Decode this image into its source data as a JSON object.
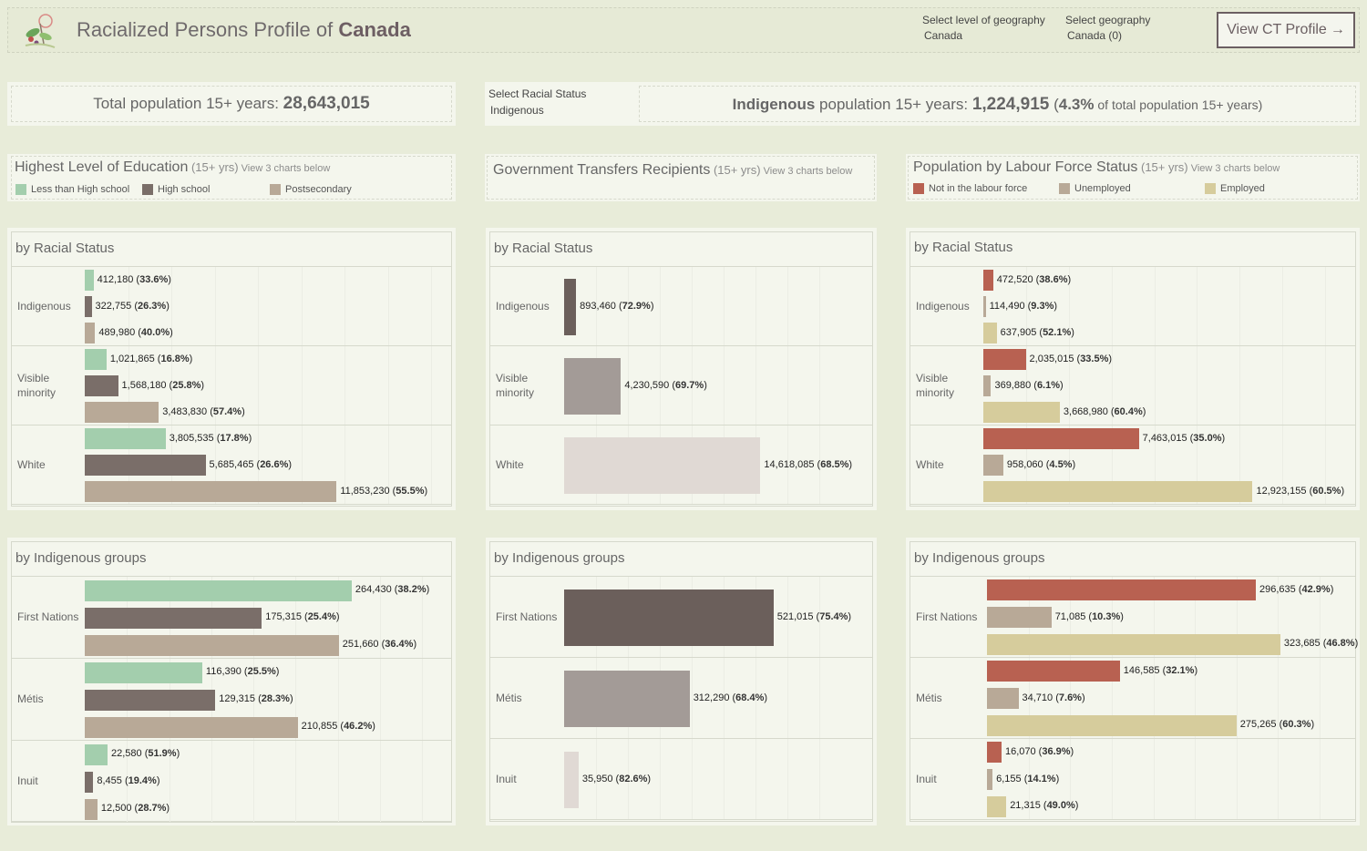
{
  "header": {
    "title_prefix": "Racialized Persons Profile of ",
    "title_geo": "Canada",
    "geo_level_label": "Select level of geography",
    "geo_level_value": "Canada",
    "geo_label": "Select geography",
    "geo_value": "Canada (0)",
    "ct_button": "View CT Profile",
    "ct_button_icon": "arrow-right-icon"
  },
  "total": {
    "label": "Total population 15+ years: ",
    "value": "28,643,015"
  },
  "racial_select": {
    "label": "Select Racial Status",
    "value": "Indigenous"
  },
  "group_stat": {
    "group": "Indigenous",
    "label": " population 15+ years: ",
    "value": "1,224,915",
    "pct": "4.3%",
    "suffix": " of total population 15+ years)",
    "open": " ("
  },
  "colors": {
    "edu": [
      "#a3cead",
      "#7a6e69",
      "#b8a997"
    ],
    "gov": [
      "#6b5f5b",
      "#a39b97",
      "#e0d9d4"
    ],
    "lab": [
      "#b86151",
      "#b8a997",
      "#d6cc9c"
    ]
  },
  "sections": {
    "edu": {
      "title": "Highest Level of Education",
      "sub": " (15+ yrs)",
      "note": " View 3 charts below",
      "legend": [
        "Less than High school",
        "High school",
        "Postsecondary"
      ]
    },
    "gov": {
      "title": "Government Transfers Recipients",
      "sub": " (15+ yrs)",
      "note": " View 3 charts below"
    },
    "lab": {
      "title": "Population by Labour Force Status",
      "sub": " (15+ yrs)",
      "note": " View 3 charts below",
      "legend": [
        "Not in the labour force",
        "Unemployed",
        "Employed"
      ]
    }
  },
  "charts": {
    "racial_title": "by Racial Status",
    "indig_title": "by Indigenous groups"
  },
  "chart_data": [
    {
      "type": "bar",
      "title": "by Racial Status",
      "section": "Highest Level of Education",
      "categories": [
        "Indigenous",
        "Visible minority",
        "White"
      ],
      "series": [
        {
          "name": "Less than High school",
          "values": [
            412180,
            1021865,
            3805535
          ],
          "labels": [
            "412,180",
            "1,021,865",
            "3,805,535"
          ],
          "pct": [
            "33.6%",
            "16.8%",
            "17.8%"
          ]
        },
        {
          "name": "High school",
          "values": [
            322755,
            1568180,
            5685465
          ],
          "labels": [
            "322,755",
            "1,568,180",
            "5,685,465"
          ],
          "pct": [
            "26.3%",
            "25.8%",
            "26.6%"
          ]
        },
        {
          "name": "Postsecondary",
          "values": [
            489980,
            3483830,
            11853230
          ],
          "labels": [
            "489,980",
            "3,483,830",
            "11,853,230"
          ],
          "pct": [
            "40.0%",
            "57.4%",
            "55.5%"
          ]
        }
      ]
    },
    {
      "type": "bar",
      "title": "by Racial Status",
      "section": "Government Transfers Recipients",
      "categories": [
        "Indigenous",
        "Visible minority",
        "White"
      ],
      "series": [
        {
          "values": [
            893460,
            4230590,
            14618085
          ],
          "labels": [
            "893,460",
            "4,230,590",
            "14,618,085"
          ],
          "pct": [
            "72.9%",
            "69.7%",
            "68.5%"
          ]
        }
      ]
    },
    {
      "type": "bar",
      "title": "by Racial Status",
      "section": "Population by Labour Force Status",
      "categories": [
        "Indigenous",
        "Visible minority",
        "White"
      ],
      "series": [
        {
          "name": "Not in the labour force",
          "values": [
            472520,
            2035015,
            7463015
          ],
          "labels": [
            "472,520",
            "2,035,015",
            "7,463,015"
          ],
          "pct": [
            "38.6%",
            "33.5%",
            "35.0%"
          ]
        },
        {
          "name": "Unemployed",
          "values": [
            114490,
            369880,
            958060
          ],
          "labels": [
            "114,490",
            "369,880",
            "958,060"
          ],
          "pct": [
            "9.3%",
            "6.1%",
            "4.5%"
          ]
        },
        {
          "name": "Employed",
          "values": [
            637905,
            3668980,
            12923155
          ],
          "labels": [
            "637,905",
            "3,668,980",
            "12,923,155"
          ],
          "pct": [
            "52.1%",
            "60.4%",
            "60.5%"
          ]
        }
      ]
    },
    {
      "type": "bar",
      "title": "by Indigenous groups",
      "section": "Highest Level of Education",
      "categories": [
        "First Nations",
        "Métis",
        "Inuit"
      ],
      "series": [
        {
          "name": "Less than High school",
          "values": [
            264430,
            116390,
            22580
          ],
          "labels": [
            "264,430",
            "116,390",
            "22,580"
          ],
          "pct": [
            "38.2%",
            "25.5%",
            "51.9%"
          ]
        },
        {
          "name": "High school",
          "values": [
            175315,
            129315,
            8455
          ],
          "labels": [
            "175,315",
            "129,315",
            "8,455"
          ],
          "pct": [
            "25.4%",
            "28.3%",
            "19.4%"
          ]
        },
        {
          "name": "Postsecondary",
          "values": [
            251660,
            210855,
            12500
          ],
          "labels": [
            "251,660",
            "210,855",
            "12,500"
          ],
          "pct": [
            "36.4%",
            "46.2%",
            "28.7%"
          ]
        }
      ]
    },
    {
      "type": "bar",
      "title": "by Indigenous groups",
      "section": "Government Transfers Recipients",
      "categories": [
        "First Nations",
        "Métis",
        "Inuit"
      ],
      "series": [
        {
          "values": [
            521015,
            312290,
            35950
          ],
          "labels": [
            "521,015",
            "312,290",
            "35,950"
          ],
          "pct": [
            "75.4%",
            "68.4%",
            "82.6%"
          ]
        }
      ]
    },
    {
      "type": "bar",
      "title": "by Indigenous groups",
      "section": "Population by Labour Force Status",
      "categories": [
        "First Nations",
        "Métis",
        "Inuit"
      ],
      "series": [
        {
          "name": "Not in the labour force",
          "values": [
            296635,
            146585,
            16070
          ],
          "labels": [
            "296,635",
            "146,585",
            "16,070"
          ],
          "pct": [
            "42.9%",
            "32.1%",
            "36.9%"
          ]
        },
        {
          "name": "Unemployed",
          "values": [
            71085,
            34710,
            6155
          ],
          "labels": [
            "71,085",
            "34,710",
            "6,155"
          ],
          "pct": [
            "10.3%",
            "7.6%",
            "14.1%"
          ]
        },
        {
          "name": "Employed",
          "values": [
            323685,
            275265,
            21315
          ],
          "labels": [
            "323,685",
            "275,265",
            "21,315"
          ],
          "pct": [
            "46.8%",
            "60.3%",
            "49.0%"
          ]
        }
      ]
    }
  ]
}
